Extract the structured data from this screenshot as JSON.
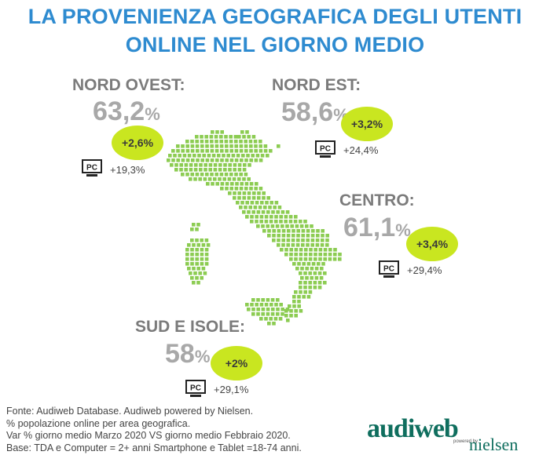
{
  "title": {
    "line1": "LA PROVENIENZA GEOGRAFICA DEGLI UTENTI",
    "line2": "ONLINE NEL GIORNO MEDIO"
  },
  "regions": {
    "nord_ovest": {
      "name": "NORD OVEST:",
      "value": "63,2",
      "unit": "%",
      "change": "+2,6%",
      "pc_label": "PC",
      "pc_change": "+19,3%"
    },
    "nord_est": {
      "name": "NORD EST:",
      "value": "58,6",
      "unit": "%",
      "change": "+3,2%",
      "pc_label": "PC",
      "pc_change": "+24,4%"
    },
    "centro": {
      "name": "CENTRO:",
      "value": "61,1",
      "unit": "%",
      "change": "+3,4%",
      "pc_label": "PC",
      "pc_change": "+29,4%"
    },
    "sud_isole": {
      "name": "SUD E ISOLE:",
      "value": "58",
      "unit": "%",
      "change": "+2%",
      "pc_label": "PC",
      "pc_change": "+29,1%"
    }
  },
  "colors": {
    "title": "#2e8bd0",
    "badge": "#c9e620",
    "map_dots": "#8ccc52",
    "region_label": "#7b7b7b",
    "value": "#a8a8a8",
    "brand": "#0f6e5e"
  },
  "footer": {
    "line1": "Fonte: Audiweb Database. Audiweb powered by Nielsen.",
    "line2": "% popolazione online per area geografica.",
    "line3": "Var % giorno medio Marzo 2020 VS giorno medio Febbraio 2020.",
    "line4": "Base: TDA e Computer = 2+ anni Smartphone e Tablet =18-74 anni."
  },
  "logo": {
    "brand": "audiweb",
    "powered": "powered by",
    "partner": "nielsen"
  }
}
